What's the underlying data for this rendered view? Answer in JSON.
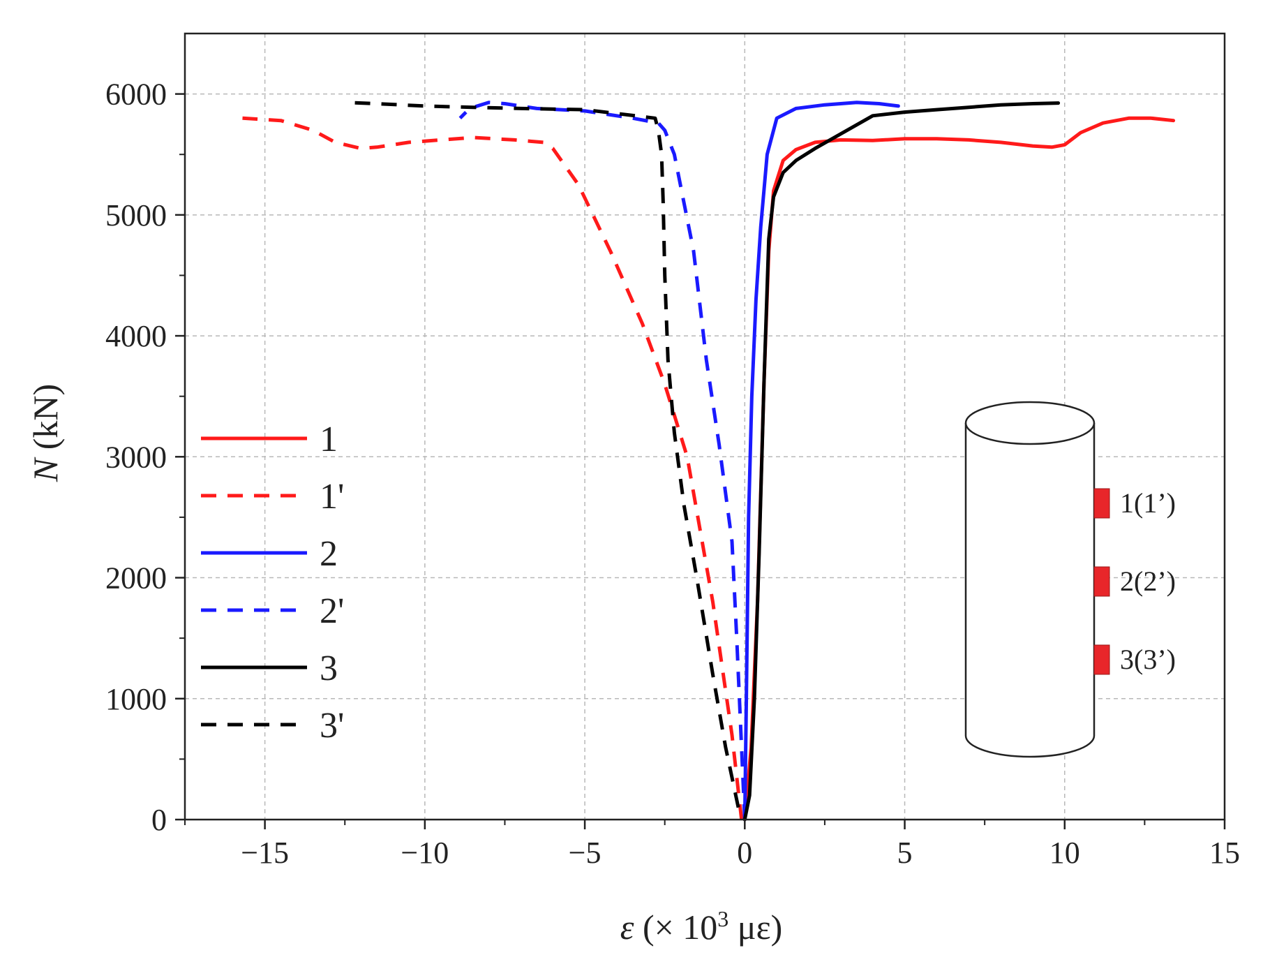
{
  "chart_data": {
    "type": "line",
    "xlabel": {
      "symbol": "ε",
      "text": " (× 10",
      "sup": "3",
      "tail": " με)"
    },
    "ylabel": {
      "symbol": "N",
      "text": " (kN)"
    },
    "xlim": [
      -17.5,
      15
    ],
    "ylim": [
      0,
      6500
    ],
    "xticks": [
      -15,
      -10,
      -5,
      0,
      5,
      10,
      15
    ],
    "xtick_labels": [
      "−15",
      "−10",
      "−5",
      "0",
      "5",
      "10",
      "15"
    ],
    "yticks": [
      0,
      1000,
      2000,
      3000,
      4000,
      5000,
      6000
    ],
    "ytick_labels": [
      "0",
      "1000",
      "2000",
      "3000",
      "4000",
      "5000",
      "6000"
    ],
    "grid": true,
    "series": [
      {
        "name": "1",
        "label": "1",
        "color": "#ff1a1a",
        "dash": "solid",
        "points": [
          [
            0,
            0
          ],
          [
            0.2,
            600
          ],
          [
            0.4,
            1800
          ],
          [
            0.6,
            3600
          ],
          [
            0.75,
            4700
          ],
          [
            0.9,
            5200
          ],
          [
            1.2,
            5450
          ],
          [
            1.6,
            5540
          ],
          [
            2.2,
            5600
          ],
          [
            3,
            5620
          ],
          [
            4,
            5615
          ],
          [
            5,
            5630
          ],
          [
            6,
            5630
          ],
          [
            7,
            5620
          ],
          [
            8,
            5600
          ],
          [
            9,
            5570
          ],
          [
            9.6,
            5560
          ],
          [
            10,
            5580
          ],
          [
            10.5,
            5680
          ],
          [
            11.2,
            5760
          ],
          [
            12,
            5800
          ],
          [
            12.7,
            5800
          ],
          [
            13.4,
            5780
          ]
        ]
      },
      {
        "name": "1'",
        "label": "1'",
        "color": "#ff1a1a",
        "dash": "dashed",
        "points": [
          [
            -0.1,
            0
          ],
          [
            -0.4,
            700
          ],
          [
            -1,
            1800
          ],
          [
            -1.8,
            3000
          ],
          [
            -2.5,
            3600
          ],
          [
            -3.2,
            4100
          ],
          [
            -4.2,
            4700
          ],
          [
            -5.2,
            5250
          ],
          [
            -6,
            5550
          ],
          [
            -6.3,
            5600
          ],
          [
            -7.2,
            5620
          ],
          [
            -8.5,
            5640
          ],
          [
            -9.5,
            5620
          ],
          [
            -10.5,
            5600
          ],
          [
            -11.5,
            5560
          ],
          [
            -12,
            5550
          ],
          [
            -12.8,
            5600
          ],
          [
            -13.5,
            5700
          ],
          [
            -14.5,
            5780
          ],
          [
            -15.7,
            5800
          ]
        ]
      },
      {
        "name": "2",
        "label": "2",
        "color": "#1a1aff",
        "dash": "solid",
        "points": [
          [
            0,
            0
          ],
          [
            0.05,
            1000
          ],
          [
            0.12,
            2500
          ],
          [
            0.22,
            3500
          ],
          [
            0.35,
            4300
          ],
          [
            0.5,
            4900
          ],
          [
            0.7,
            5500
          ],
          [
            1,
            5800
          ],
          [
            1.6,
            5880
          ],
          [
            2.5,
            5910
          ],
          [
            3.5,
            5930
          ],
          [
            4.2,
            5920
          ],
          [
            4.8,
            5900
          ]
        ]
      },
      {
        "name": "2'",
        "label": "2'",
        "color": "#1a1aff",
        "dash": "dashed",
        "points": [
          [
            0,
            0
          ],
          [
            -0.1,
            600
          ],
          [
            -0.25,
            1500
          ],
          [
            -0.4,
            2300
          ],
          [
            -0.8,
            3100
          ],
          [
            -1.2,
            3800
          ],
          [
            -1.6,
            4700
          ],
          [
            -1.9,
            5100
          ],
          [
            -2.2,
            5500
          ],
          [
            -2.5,
            5700
          ],
          [
            -2.7,
            5760
          ],
          [
            -3.5,
            5800
          ],
          [
            -5,
            5860
          ],
          [
            -6.5,
            5880
          ],
          [
            -7.5,
            5920
          ],
          [
            -8,
            5930
          ],
          [
            -8.6,
            5880
          ],
          [
            -8.9,
            5800
          ]
        ]
      },
      {
        "name": "3",
        "label": "3",
        "color": "#000000",
        "dash": "solid",
        "points": [
          [
            0,
            0
          ],
          [
            0.15,
            200
          ],
          [
            0.3,
            1000
          ],
          [
            0.45,
            2200
          ],
          [
            0.6,
            3600
          ],
          [
            0.75,
            4800
          ],
          [
            0.9,
            5150
          ],
          [
            1.2,
            5350
          ],
          [
            1.6,
            5450
          ],
          [
            2.2,
            5550
          ],
          [
            3,
            5670
          ],
          [
            4,
            5820
          ],
          [
            5,
            5850
          ],
          [
            6,
            5870
          ],
          [
            7,
            5890
          ],
          [
            8,
            5910
          ],
          [
            9,
            5920
          ],
          [
            9.8,
            5925
          ]
        ]
      },
      {
        "name": "3'",
        "label": "3'",
        "color": "#000000",
        "dash": "dashed",
        "points": [
          [
            -0.2,
            100
          ],
          [
            -0.6,
            600
          ],
          [
            -1,
            1200
          ],
          [
            -1.5,
            2000
          ],
          [
            -1.9,
            2600
          ],
          [
            -2.2,
            3200
          ],
          [
            -2.4,
            3800
          ],
          [
            -2.5,
            4500
          ],
          [
            -2.55,
            5100
          ],
          [
            -2.6,
            5500
          ],
          [
            -2.7,
            5700
          ],
          [
            -2.8,
            5800
          ],
          [
            -5,
            5870
          ],
          [
            -7,
            5880
          ],
          [
            -8.5,
            5890
          ],
          [
            -10,
            5900
          ],
          [
            -11.5,
            5920
          ],
          [
            -12.5,
            5930
          ]
        ]
      }
    ],
    "inset": {
      "description_labels": [
        "1(1’)",
        "2(2’)",
        "3(3’)"
      ],
      "gauge_color": "#e8262a"
    }
  }
}
